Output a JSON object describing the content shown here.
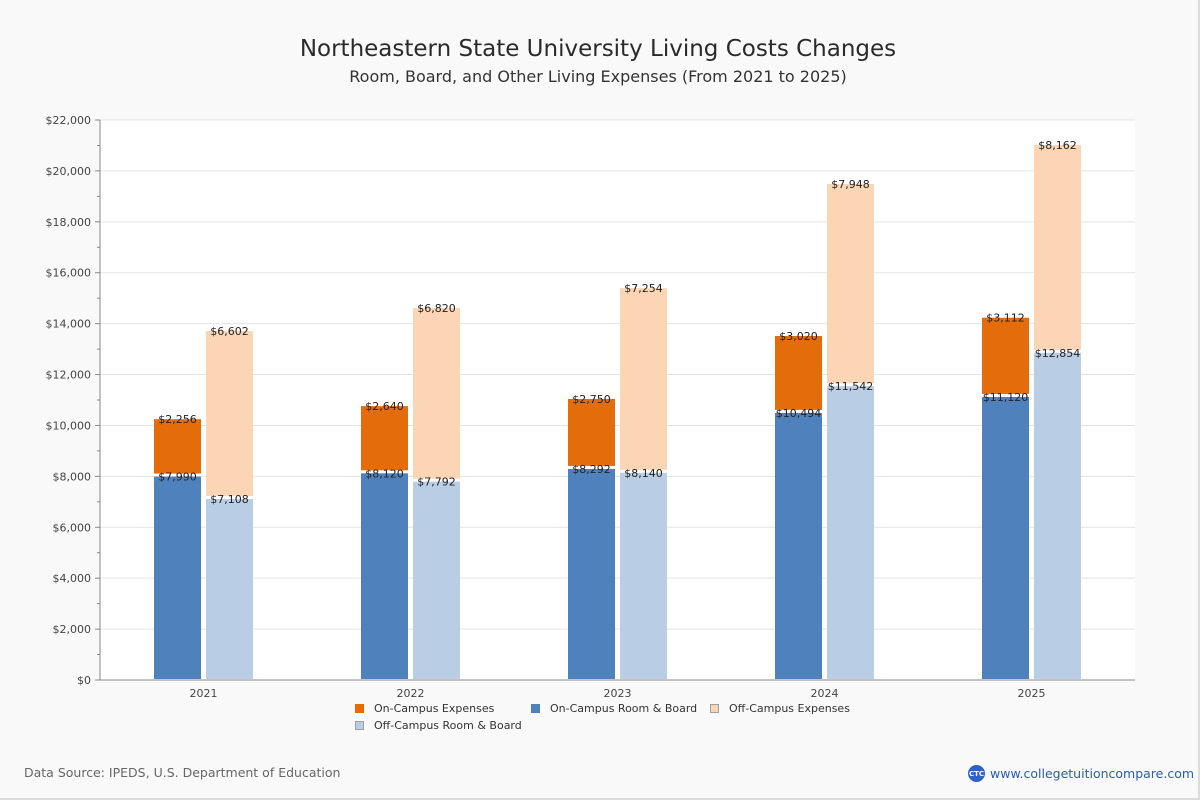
{
  "header": {
    "title": "Northeastern State University Living Costs Changes",
    "subtitle": "Room, Board, and Other Living Expenses (From 2021 to 2025)"
  },
  "footer": {
    "source": "Data Source: IPEDS, U.S. Department of Education",
    "brand_logo": "CTC",
    "brand_url": "www.collegetuitioncompare.com"
  },
  "chart_data": {
    "type": "bar",
    "stacked": true,
    "title": "Northeastern State University Living Costs Changes",
    "subtitle": "Room, Board, and Other Living Expenses (From 2021 to 2025)",
    "xlabel": "",
    "ylabel": "",
    "categories": [
      "2021",
      "2022",
      "2023",
      "2024",
      "2025"
    ],
    "ylim": [
      0,
      22000
    ],
    "yticks": [
      0,
      2000,
      4000,
      6000,
      8000,
      10000,
      12000,
      14000,
      16000,
      18000,
      20000,
      22000
    ],
    "ytick_labels": [
      "$0",
      "$2,000",
      "$4,000",
      "$6,000",
      "$8,000",
      "$10,000",
      "$12,000",
      "$14,000",
      "$16,000",
      "$18,000",
      "$20,000",
      "$22,000"
    ],
    "grid": true,
    "legend_position": "bottom",
    "stacks": [
      {
        "name": "on-campus",
        "series": [
          {
            "name": "On-Campus Room & Board",
            "color": "#4f81bd",
            "values": [
              7990,
              8120,
              8292,
              10494,
              11120
            ],
            "labels": [
              "$7,990",
              "$8,120",
              "$8,292",
              "$10,494",
              "$11,120"
            ]
          },
          {
            "name": "On-Campus Expenses",
            "color": "#e46c0a",
            "values": [
              2256,
              2640,
              2750,
              3020,
              3112
            ],
            "labels": [
              "$2,256",
              "$2,640",
              "$2,750",
              "$3,020",
              "$3,112"
            ]
          }
        ]
      },
      {
        "name": "off-campus",
        "series": [
          {
            "name": "Off-Campus Room & Board",
            "color": "#b9cde5",
            "values": [
              7108,
              7792,
              8140,
              11542,
              12854
            ],
            "labels": [
              "$7,108",
              "$7,792",
              "$8,140",
              "$11,542",
              "$12,854"
            ]
          },
          {
            "name": "Off-Campus Expenses",
            "color": "#fcd5b5",
            "values": [
              6602,
              6820,
              7254,
              7948,
              8162
            ],
            "labels": [
              "$6,602",
              "$6,820",
              "$7,254",
              "$7,948",
              "$8,162"
            ]
          }
        ]
      }
    ],
    "legend": [
      {
        "label": "On-Campus Expenses",
        "color": "#e46c0a"
      },
      {
        "label": "On-Campus Room & Board",
        "color": "#4f81bd"
      },
      {
        "label": "Off-Campus Expenses",
        "color": "#fcd5b5"
      },
      {
        "label": "Off-Campus Room & Board",
        "color": "#b9cde5"
      }
    ]
  }
}
